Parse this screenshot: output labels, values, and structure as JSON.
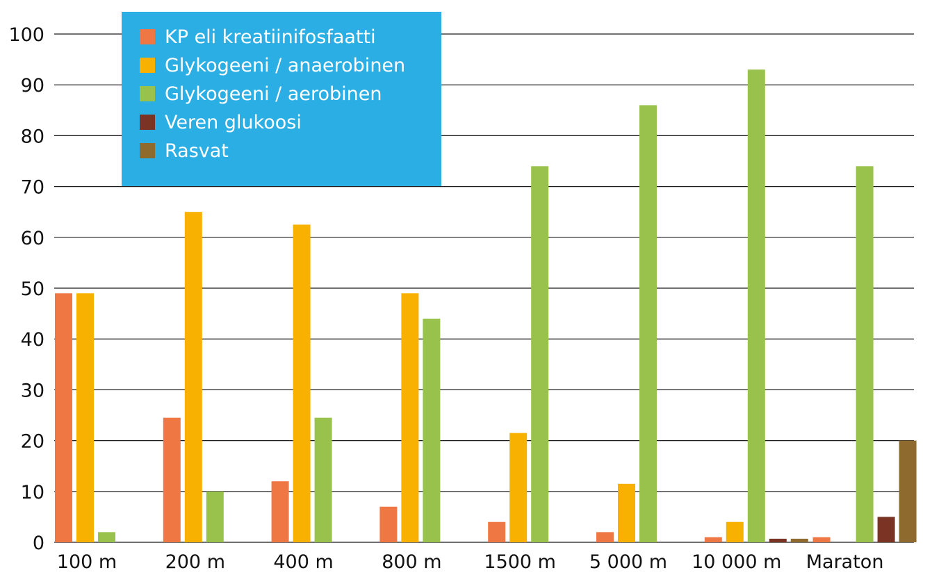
{
  "chart_data": {
    "type": "bar",
    "categories": [
      "100 m",
      "200 m",
      "400 m",
      "800 m",
      "1500 m",
      "5 000 m",
      "10 000 m",
      "Maraton"
    ],
    "ylim": [
      0,
      100
    ],
    "yticks": [
      "0",
      "10",
      "20",
      "30",
      "40",
      "50",
      "60",
      "70",
      "80",
      "90",
      "100"
    ],
    "grid": true,
    "legend_position": "top-left",
    "series": [
      {
        "name": "KP eli kreatiinifosfaatti",
        "color": "#ee7744",
        "values": [
          49,
          24.5,
          12,
          7,
          4,
          2,
          1,
          1
        ]
      },
      {
        "name": "Glykogeeni / anaerobinen",
        "color": "#f8b100",
        "values": [
          49,
          65,
          62.5,
          49,
          21.5,
          11.5,
          4,
          null
        ]
      },
      {
        "name": "Glykogeeni / aerobinen",
        "color": "#99c24d",
        "values": [
          2,
          10,
          24.5,
          44,
          74,
          86,
          93,
          74
        ]
      },
      {
        "name": "Veren glukoosi",
        "color": "#7b3323",
        "values": [
          null,
          null,
          null,
          null,
          null,
          null,
          0.7,
          5
        ]
      },
      {
        "name": "Rasvat",
        "color": "#8e6a2e",
        "values": [
          null,
          null,
          null,
          null,
          null,
          null,
          0.7,
          20
        ]
      }
    ]
  }
}
